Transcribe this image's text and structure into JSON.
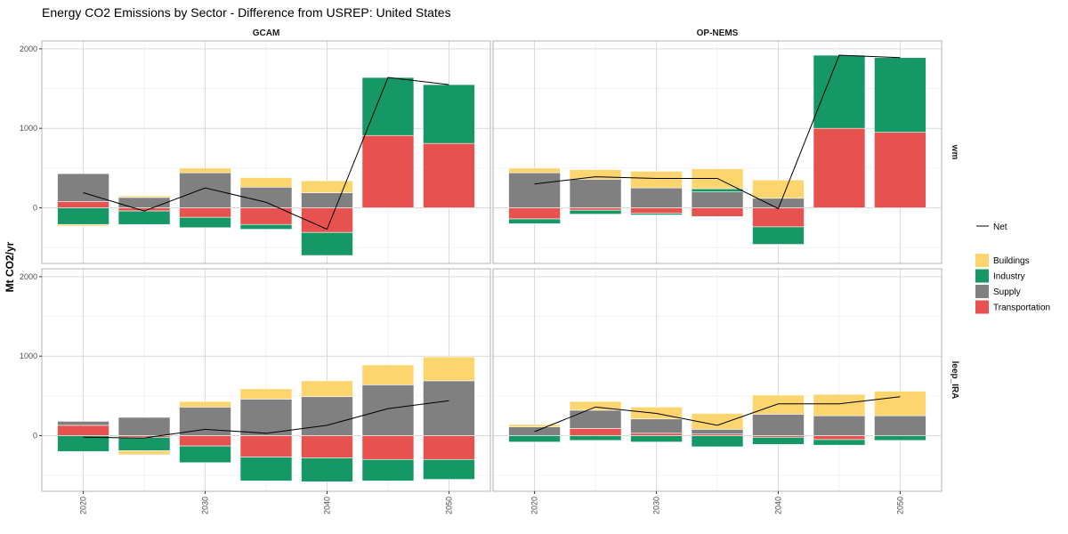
{
  "chart_data": {
    "type": "bar",
    "subtype": "stacked-diverging-faceted",
    "title": "Energy CO2 Emissions by Sector - Difference from USREP: United States",
    "ylabel": "Mt CO2/yr",
    "xlabel": "",
    "ylim": [
      -700,
      2100
    ],
    "y_ticks": [
      0,
      1000,
      2000
    ],
    "x_ticks": [
      2020,
      2030,
      2040,
      2050
    ],
    "x": [
      2020,
      2025,
      2030,
      2035,
      2040,
      2045,
      2050
    ],
    "grid": true,
    "legend_position": "right",
    "columns": [
      "GCAM",
      "OP-NEMS"
    ],
    "rows": [
      "wm",
      "leep_IRA"
    ],
    "series_order": [
      "Transportation",
      "Supply",
      "Industry",
      "Buildings"
    ],
    "colors": {
      "Buildings": "#FDD56F",
      "Industry": "#159866",
      "Supply": "#808080",
      "Transportation": "#E8524E",
      "Net": "#000000"
    },
    "legend": {
      "line_label": "Net",
      "fill_labels": [
        "Buildings",
        "Industry",
        "Supply",
        "Transportation"
      ]
    },
    "panels": [
      {
        "col": "GCAM",
        "row": "wm",
        "series": [
          {
            "name": "Buildings",
            "values": [
              -20,
              20,
              60,
              120,
              150,
              0,
              0
            ]
          },
          {
            "name": "Industry",
            "values": [
              -210,
              -170,
              -130,
              -60,
              -290,
              730,
              740
            ]
          },
          {
            "name": "Supply",
            "values": [
              350,
              130,
              440,
              260,
              190,
              0,
              0
            ]
          },
          {
            "name": "Transportation",
            "values": [
              80,
              -40,
              -120,
              -210,
              -310,
              910,
              810
            ]
          }
        ],
        "net": [
          190,
          -40,
          250,
          70,
          -270,
          1640,
          1550
        ]
      },
      {
        "col": "OP-NEMS",
        "row": "wm",
        "series": [
          {
            "name": "Buildings",
            "values": [
              60,
              120,
              210,
              250,
              230,
              0,
              0
            ]
          },
          {
            "name": "Industry",
            "values": [
              -60,
              -50,
              -20,
              40,
              -220,
              920,
              940
            ]
          },
          {
            "name": "Supply",
            "values": [
              440,
              360,
              250,
              200,
              120,
              0,
              0
            ]
          },
          {
            "name": "Transportation",
            "values": [
              -140,
              -30,
              -70,
              -110,
              -240,
              1000,
              950
            ]
          }
        ],
        "net": [
          300,
          390,
          370,
          370,
          -10,
          1920,
          1890
        ]
      },
      {
        "col": "GCAM",
        "row": "leep_IRA",
        "series": [
          {
            "name": "Buildings",
            "values": [
              0,
              -50,
              70,
              130,
              200,
              250,
              300
            ]
          },
          {
            "name": "Industry",
            "values": [
              -200,
              -170,
              -210,
              -300,
              -300,
              -270,
              -250
            ]
          },
          {
            "name": "Supply",
            "values": [
              50,
              230,
              360,
              460,
              490,
              640,
              690
            ]
          },
          {
            "name": "Transportation",
            "values": [
              130,
              -20,
              -130,
              -270,
              -280,
              -300,
              -300
            ]
          }
        ],
        "net": [
          -20,
          -30,
          80,
          30,
          130,
          340,
          440
        ]
      },
      {
        "col": "OP-NEMS",
        "row": "leep_IRA",
        "series": [
          {
            "name": "Buildings",
            "values": [
              30,
              110,
              150,
              200,
              240,
              270,
              310
            ]
          },
          {
            "name": "Industry",
            "values": [
              -80,
              -60,
              -80,
              -140,
              -90,
              -70,
              -60
            ]
          },
          {
            "name": "Supply",
            "values": [
              110,
              230,
              180,
              60,
              270,
              250,
              250
            ]
          },
          {
            "name": "Transportation",
            "values": [
              0,
              90,
              30,
              20,
              -20,
              -50,
              0
            ]
          }
        ],
        "net": [
          50,
          360,
          280,
          130,
          400,
          400,
          490
        ]
      }
    ]
  }
}
